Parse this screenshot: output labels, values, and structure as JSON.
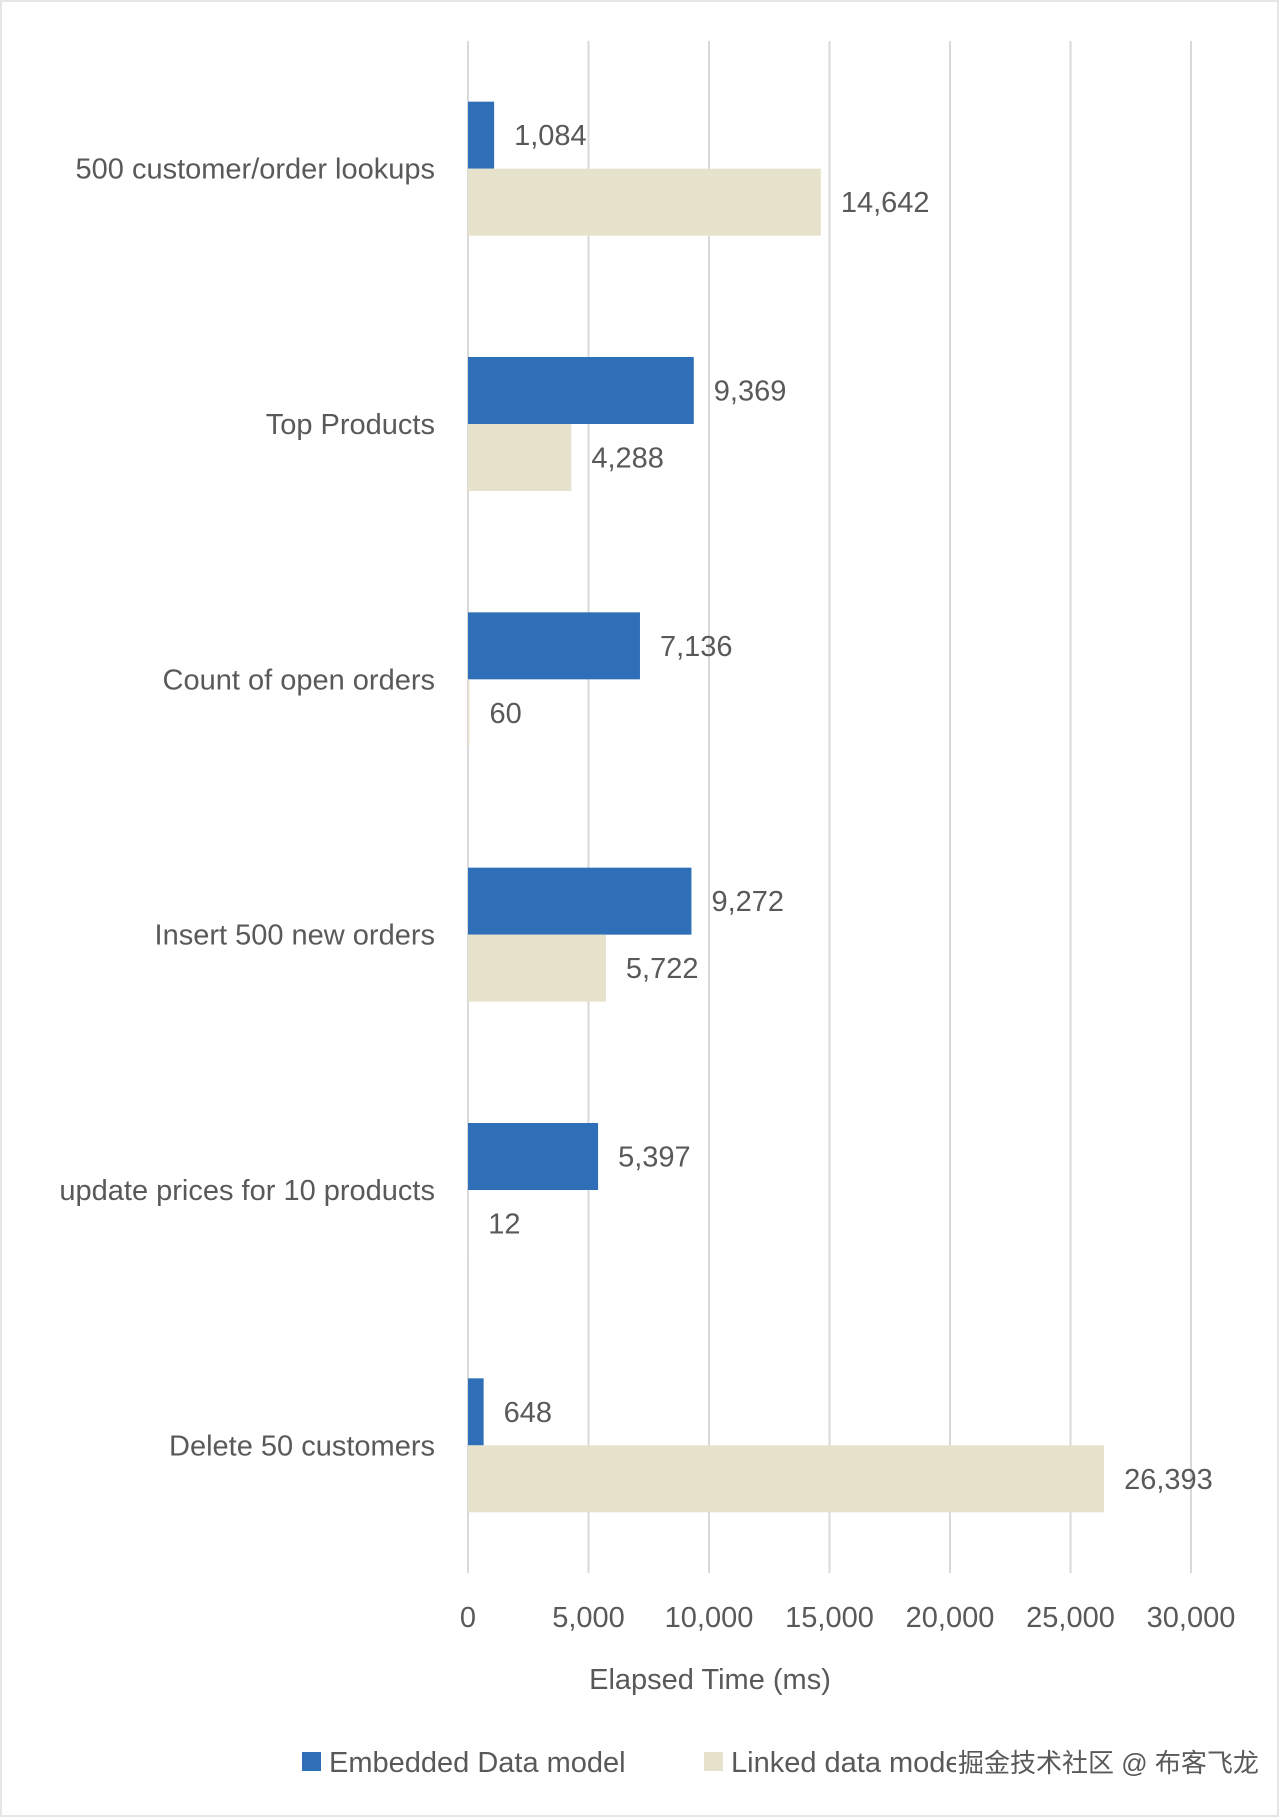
{
  "chart_data": {
    "type": "bar",
    "orientation": "horizontal",
    "categories": [
      "500 customer/order lookups",
      "Top Products",
      "Count of open orders",
      "Insert 500 new orders",
      "update prices for 10 products",
      "Delete 50 customers"
    ],
    "series": [
      {
        "name": "Embedded Data model",
        "color": "#2e6fb7",
        "values": [
          1084,
          9369,
          7136,
          9272,
          5397,
          648
        ],
        "labels": [
          "1,084",
          "9,369",
          "7,136",
          "9,272",
          "5,397",
          "648"
        ]
      },
      {
        "name": "Linked data model",
        "color": "#e6e2cb",
        "values": [
          14642,
          4288,
          60,
          5722,
          12,
          26393
        ],
        "labels": [
          "14,642",
          "4,288",
          "60",
          "5,722",
          "12",
          "26,393"
        ]
      }
    ],
    "xlabel": "Elapsed Time (ms)",
    "ylabel": "",
    "xlim": [
      0,
      30000
    ],
    "xticks": [
      0,
      5000,
      10000,
      15000,
      20000,
      25000,
      30000
    ],
    "xtick_labels": [
      "0",
      "5,000",
      "10,000",
      "15,000",
      "20,000",
      "25,000",
      "30,000"
    ],
    "grid": true,
    "legend": "bottom"
  },
  "watermark": "掘金技术社区 @ 布客飞龙"
}
